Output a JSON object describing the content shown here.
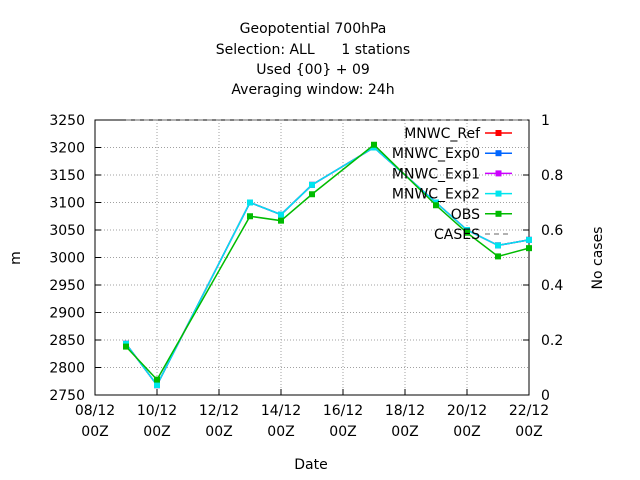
{
  "chart_data": {
    "type": "line",
    "title_lines": [
      "Geopotential 700hPa",
      "Selection: ALL      1 stations",
      "Used {00} + 09",
      "Averaging window: 24h"
    ],
    "xlabel": "Date",
    "ylabel": "m",
    "y2label": "No cases",
    "x": [
      9,
      10,
      13,
      14,
      15,
      17,
      19,
      20,
      21,
      22
    ],
    "xlim": [
      8,
      22
    ],
    "xticks": [
      {
        "value": 8,
        "label": "08/12 00Z"
      },
      {
        "value": 10,
        "label": "10/12 00Z"
      },
      {
        "value": 12,
        "label": "12/12 00Z"
      },
      {
        "value": 14,
        "label": "14/12 00Z"
      },
      {
        "value": 16,
        "label": "16/12 00Z"
      },
      {
        "value": 18,
        "label": "18/12 00Z"
      },
      {
        "value": 20,
        "label": "20/12 00Z"
      },
      {
        "value": 22,
        "label": "22/12 00Z"
      }
    ],
    "ylim": [
      2750,
      3250
    ],
    "yticks": [
      2750,
      2800,
      2850,
      2900,
      2950,
      3000,
      3050,
      3100,
      3150,
      3200,
      3250
    ],
    "y2lim": [
      0,
      1
    ],
    "y2ticks": [
      0,
      0.2,
      0.4,
      0.6,
      0.8,
      1
    ],
    "grid": true,
    "legend": "top-right",
    "series": [
      {
        "name": "MNWC_Ref",
        "color": "#ff0000",
        "values": [
          2843,
          2768,
          3100,
          3078,
          3132,
          3200,
          3100,
          3050,
          3022,
          3032
        ]
      },
      {
        "name": "MNWC_Exp0",
        "color": "#0066ff",
        "values": [
          2843,
          2768,
          3100,
          3078,
          3132,
          3200,
          3100,
          3050,
          3022,
          3032
        ]
      },
      {
        "name": "MNWC_Exp1",
        "color": "#cc00ff",
        "values": [
          2843,
          2768,
          3100,
          3078,
          3132,
          3200,
          3100,
          3050,
          3022,
          3032
        ]
      },
      {
        "name": "MNWC_Exp2",
        "color": "#00e5ee",
        "values": [
          2843,
          2768,
          3100,
          3078,
          3132,
          3200,
          3100,
          3050,
          3022,
          3032
        ]
      },
      {
        "name": "OBS",
        "color": "#00bb00",
        "values": [
          2838,
          2778,
          3075,
          3067,
          3115,
          3205,
          3095,
          3045,
          3002,
          3017
        ]
      },
      {
        "name": "CASES",
        "color": "#999999",
        "axis": "y2",
        "dashed": true,
        "values": [
          1,
          1,
          1,
          1,
          1,
          1,
          1,
          1,
          1,
          1
        ]
      }
    ]
  }
}
